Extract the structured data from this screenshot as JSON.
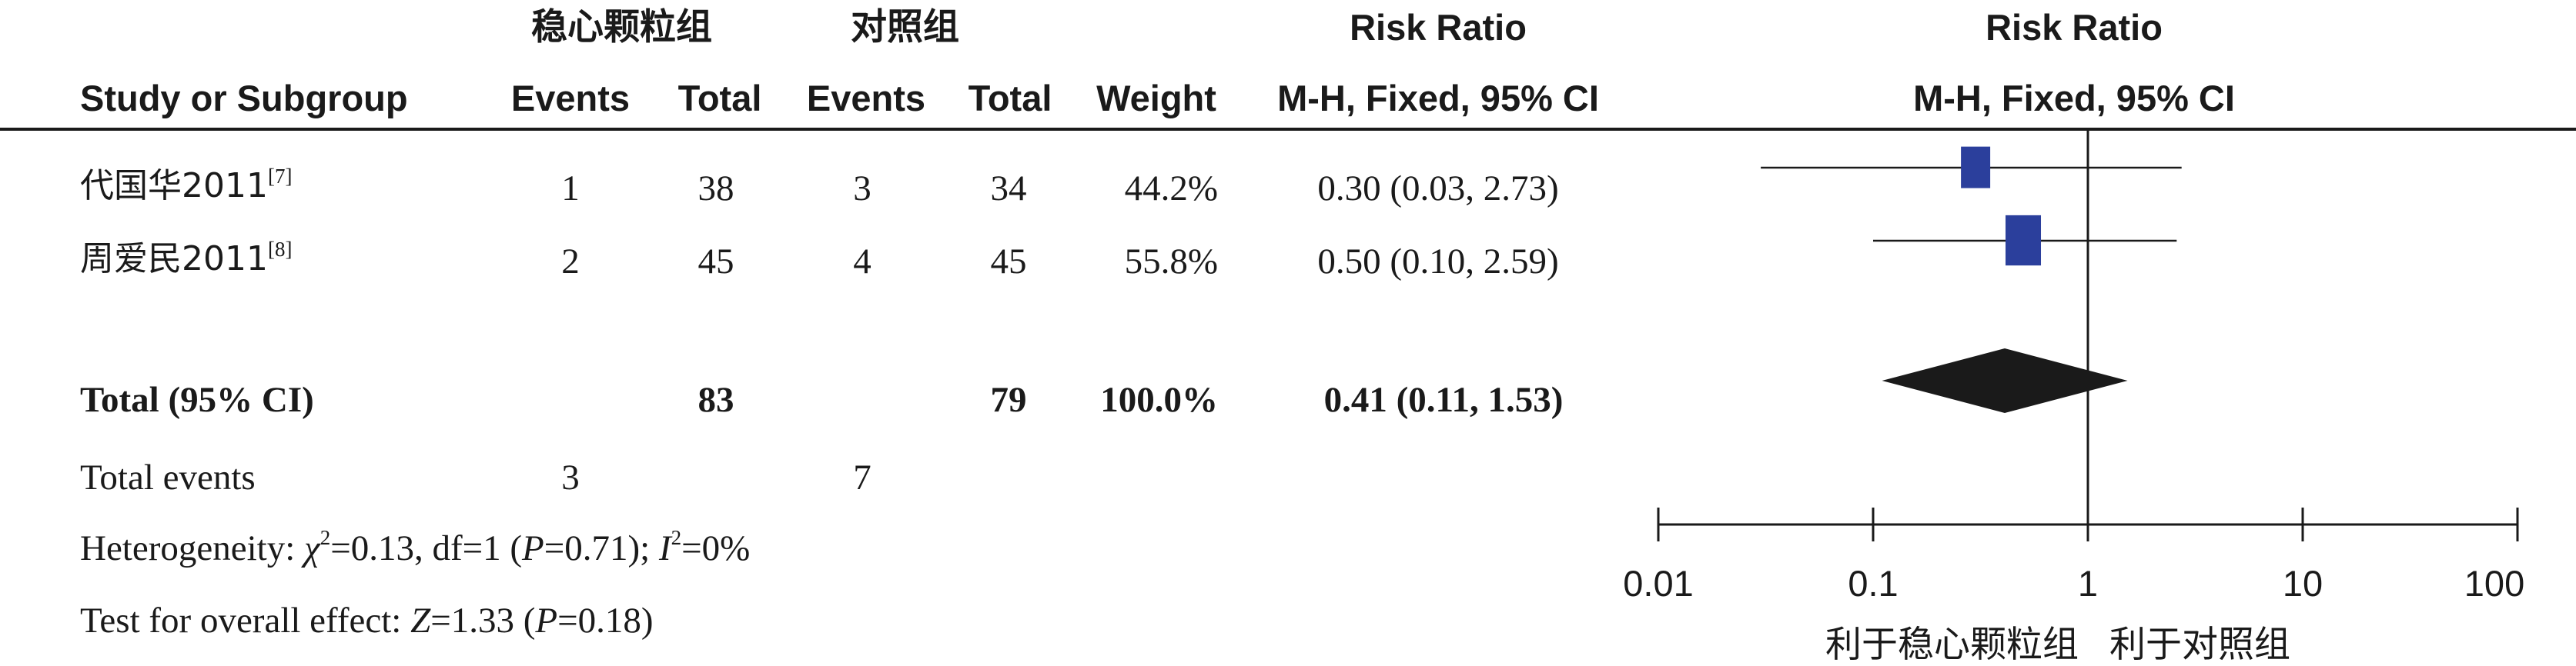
{
  "header": {
    "group_treatment": "稳心颗粒组",
    "group_control": "对照组",
    "risk_ratio_title": "Risk Ratio",
    "risk_ratio_method": "M-H, Fixed, 95% CI",
    "plot_title": "Risk Ratio",
    "plot_method": "M-H, Fixed, 95% CI",
    "col_study": "Study or Subgroup",
    "col_events_t": "Events",
    "col_total_t": "Total",
    "col_events_c": "Events",
    "col_total_c": "Total",
    "col_weight": "Weight"
  },
  "studies": [
    {
      "name": "代国华2011",
      "ref": "[7]",
      "events_t": "1",
      "total_t": "38",
      "events_c": "3",
      "total_c": "34",
      "weight": "44.2%",
      "ci_text": "0.30 (0.03, 2.73)"
    },
    {
      "name": "周爱民2011",
      "ref": "[8]",
      "events_t": "2",
      "total_t": "45",
      "events_c": "4",
      "total_c": "45",
      "weight": "55.8%",
      "ci_text": "0.50 (0.10, 2.59)"
    }
  ],
  "total": {
    "label": "Total (95% CI)",
    "total_t": "83",
    "total_c": "79",
    "weight": "100.0%",
    "ci_text": "0.41 (0.11, 1.53)"
  },
  "total_events": {
    "label": "Total events",
    "events_t": "3",
    "events_c": "7"
  },
  "heterogeneity": {
    "prefix": "Heterogeneity: ",
    "chi": "χ",
    "chi_val": "=0.13, df=1 (",
    "p": "P",
    "p_val": "=0.71); ",
    "i": "I",
    "i_val": "=0%"
  },
  "overall": {
    "prefix": "Test for overall effect: ",
    "z": "Z",
    "z_val": "=1.33 (",
    "p": "P",
    "p_val": "=0.18)"
  },
  "axis": {
    "ticks": [
      "0.01",
      "0.1",
      "1",
      "10",
      "100"
    ],
    "favours_left": "利于稳心颗粒组",
    "favours_right": "利于对照组"
  },
  "colors": {
    "marker": "#2b3f9c",
    "diamond": "#1a1a1a",
    "line": "#1a1a1a"
  },
  "chart_data": {
    "type": "forest",
    "scale": "log",
    "xlim": [
      0.01,
      100
    ],
    "ticks": [
      0.01,
      0.1,
      1,
      10,
      100
    ],
    "null_line": 1,
    "studies": [
      {
        "name": "代国华2011",
        "rr": 0.3,
        "lo": 0.03,
        "hi": 2.73,
        "weight": 44.2
      },
      {
        "name": "周爱民2011",
        "rr": 0.5,
        "lo": 0.1,
        "hi": 2.59,
        "weight": 55.8
      }
    ],
    "pooled": {
      "rr": 0.41,
      "lo": 0.11,
      "hi": 1.53
    }
  }
}
